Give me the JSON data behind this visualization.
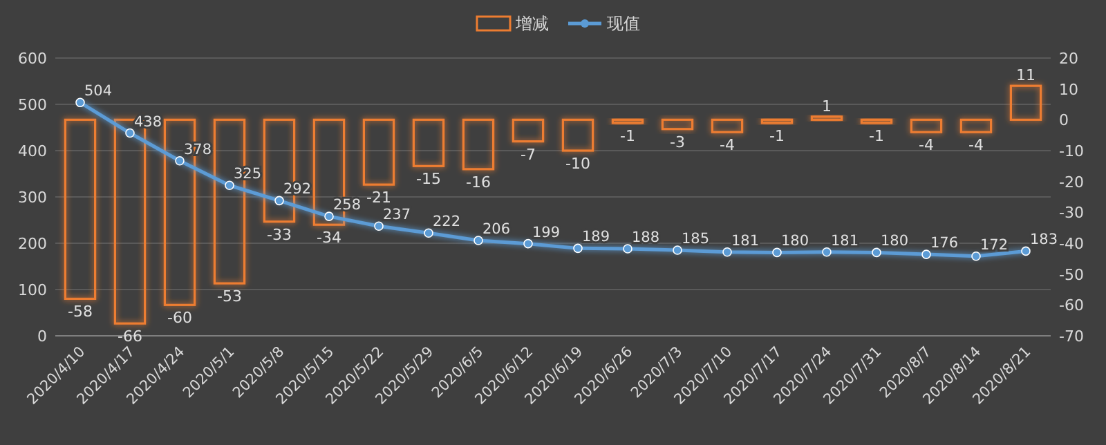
{
  "chart_data": {
    "type": "bar",
    "categories": [
      "2020/4/10",
      "2020/4/17",
      "2020/4/24",
      "2020/5/1",
      "2020/5/8",
      "2020/5/15",
      "2020/5/22",
      "2020/5/29",
      "2020/6/5",
      "2020/6/12",
      "2020/6/19",
      "2020/6/26",
      "2020/7/3",
      "2020/7/10",
      "2020/7/17",
      "2020/7/24",
      "2020/7/31",
      "2020/8/7",
      "2020/8/14",
      "2020/8/21"
    ],
    "series": [
      {
        "name": "增减",
        "axis": "y2",
        "color": "#ed7d31",
        "values": [
          -58,
          -66,
          -60,
          -53,
          -33,
          -34,
          -21,
          -15,
          -16,
          -7,
          -10,
          -1,
          -3,
          -4,
          -1,
          1,
          -1,
          -4,
          -4,
          11
        ]
      },
      {
        "name": "现值",
        "type": "line",
        "color": "#5b9bd5",
        "values": [
          504,
          438,
          378,
          325,
          292,
          258,
          237,
          222,
          206,
          199,
          189,
          188,
          185,
          181,
          180,
          181,
          180,
          176,
          172,
          183
        ]
      }
    ],
    "ylim": [
      0,
      600
    ],
    "yticks": [
      0,
      100,
      200,
      300,
      400,
      500,
      600
    ],
    "y2lim": [
      -70,
      20
    ],
    "y2ticks": [
      -70,
      -60,
      -50,
      -40,
      -30,
      -20,
      -10,
      0,
      10,
      20
    ],
    "data_labels": true,
    "legend": "top",
    "grid": "y",
    "marker": "circle"
  }
}
